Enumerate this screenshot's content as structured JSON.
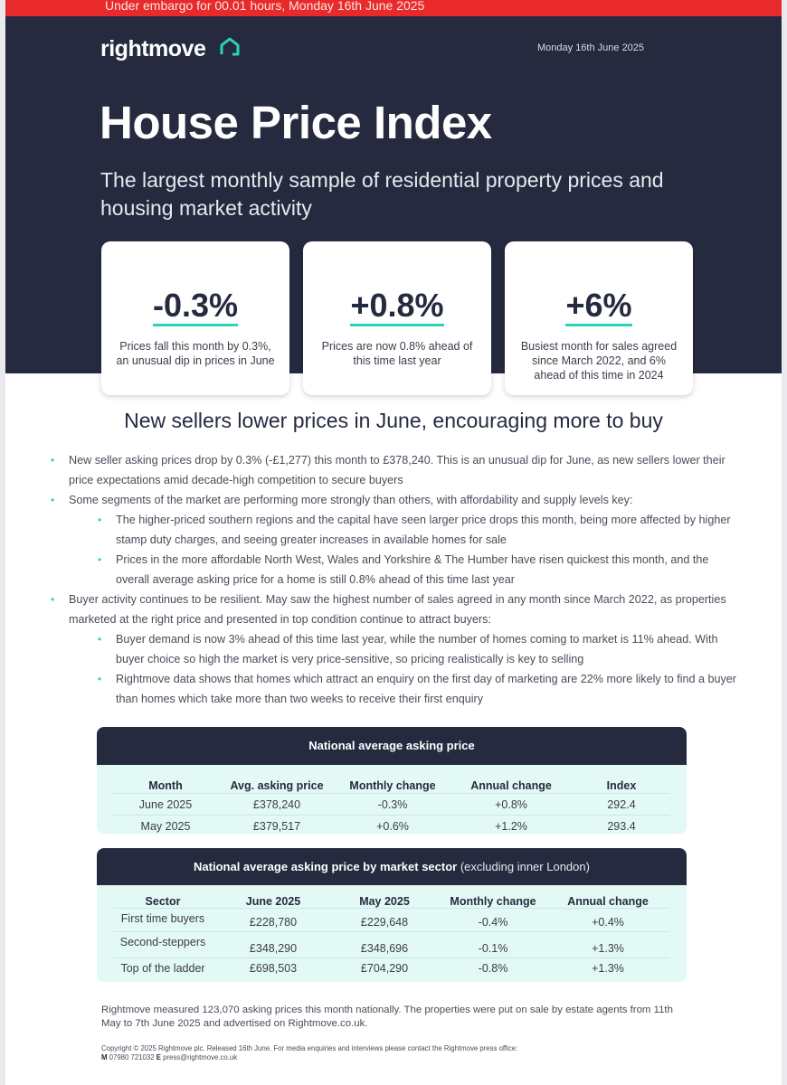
{
  "embargo": "Under embargo for 00.01 hours, Monday 16th June 2025",
  "brand": {
    "name": "rightmove",
    "icon": "house-outline-icon",
    "accent": "#2cd3b9"
  },
  "hero": {
    "date": "Monday 16th June 2025",
    "title": "House Price Index",
    "subtitle": "The largest monthly sample of residential property prices and housing market activity"
  },
  "stats": [
    {
      "value": "-0.3%",
      "desc": "Prices fall this month by 0.3%, an unusual dip in prices in June"
    },
    {
      "value": "+0.8%",
      "desc": "Prices are now 0.8% ahead of this time last year"
    },
    {
      "value": "+6%",
      "desc": "Busiest month for sales agreed since March 2022, and 6% ahead of this time in 2024"
    }
  ],
  "headline": "New sellers lower prices in June, encouraging more to buy",
  "bullets": {
    "b1": "New seller asking prices drop by 0.3% (-£1,277) this month to £378,240. This is an unusual dip for June, as new sellers lower their price expectations amid decade-high competition to secure buyers",
    "b2": "Some segments of the market are performing more strongly than others, with affordability and supply levels key:",
    "b2a": "The higher-priced southern regions and the capital have seen larger price drops this month, being more affected by higher stamp duty charges, and seeing greater increases in available homes for sale",
    "b2b": "Prices in the more affordable North West, Wales and Yorkshire & The Humber have risen quickest this month, and the overall average asking price for a home is still 0.8% ahead of this time last year",
    "b3": "Buyer activity continues to be resilient. May saw the highest number of sales agreed in any month since March 2022, as properties marketed at the right price and presented in top condition continue to attract buyers:",
    "b3a": "Buyer demand is now 3% ahead of this time last year, while the number of homes coming to market is 11% ahead. With buyer choice so high the market is very price-sensitive, so pricing realistically is key to selling",
    "b3b": "Rightmove data shows that homes which attract an enquiry on the first day of marketing are 22% more likely to find a buyer than homes which take more than two weeks to receive their first enquiry"
  },
  "table1": {
    "title": "National average asking price",
    "headers": [
      "Month",
      "Avg. asking price",
      "Monthly change",
      "Annual change",
      "Index"
    ],
    "rows": [
      [
        "June 2025",
        "£378,240",
        "-0.3%",
        "+0.8%",
        "292.4"
      ],
      [
        "May 2025",
        "£379,517",
        "+0.6%",
        "+1.2%",
        "293.4"
      ]
    ]
  },
  "table2": {
    "title": "National average asking price by market sector",
    "title_note": "(excluding inner London)",
    "headers": [
      "Sector",
      "June 2025",
      "May 2025",
      "Monthly change",
      "Annual change"
    ],
    "rows": [
      [
        "First time buyers",
        "£228,780",
        "£229,648",
        "-0.4%",
        "+0.4%"
      ],
      [
        "Second-steppers",
        "£348,290",
        "£348,696",
        "-0.1%",
        "+1.3%"
      ],
      [
        "Top of the ladder",
        "£698,503",
        "£704,290",
        "-0.8%",
        "+1.3%"
      ]
    ]
  },
  "footnote": "Rightmove measured 123,070 asking prices this month nationally. The properties were put on sale by estate agents from 11th May to 7th June 2025 and advertised on Rightmove.co.uk.",
  "copyright": {
    "line1": "Copyright © 2025 Rightmove plc. Released 16th June. For media enquiries and interviews please contact the Rightmove press office:",
    "phone_label": "M",
    "phone": "07980 721032",
    "email_label": "E",
    "email": "press@rightmove.co.uk"
  }
}
